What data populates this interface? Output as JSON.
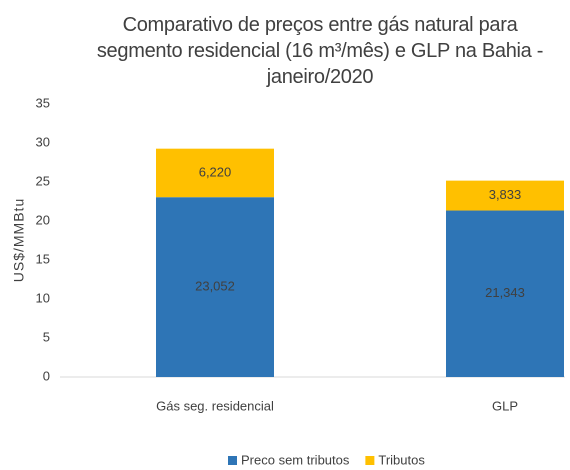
{
  "chart_data": {
    "type": "stacked_bar",
    "title": "Comparativo de preços entre gás natural para segmento residencial (16 m³/mês) e GLP na Bahia - janeiro/2020",
    "y_label": "US$/MMBtu",
    "categories": [
      "Gás seg. residencial",
      "GLP"
    ],
    "series": [
      {
        "name": "Preco sem tributos",
        "color": "#2e75b6",
        "values": [
          23.052,
          21.343
        ],
        "value_labels": [
          "23,052",
          "21,343"
        ]
      },
      {
        "name": "Tributos",
        "color": "#ffc000",
        "values": [
          6.22,
          3.833
        ],
        "value_labels": [
          "6,220",
          "3,833"
        ]
      }
    ],
    "ylim": [
      0,
      35
    ],
    "yticks": [
      0,
      5,
      10,
      15,
      20,
      25,
      30,
      35
    ],
    "grid": false,
    "legend": "bottom"
  }
}
